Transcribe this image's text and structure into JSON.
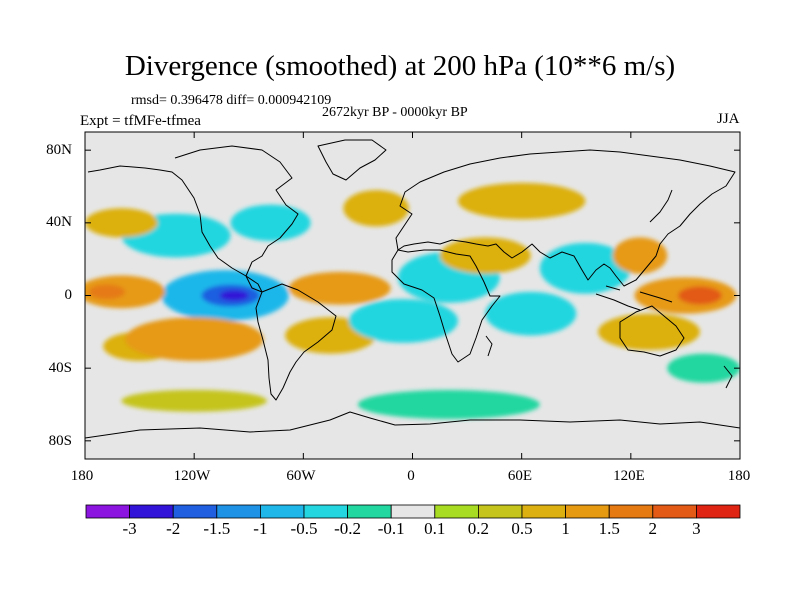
{
  "title": "Divergence (smoothed) at 200 hPa (10**6 m/s)",
  "stats": "rmsd= 0.396478 diff= 0.000942109",
  "period": "2672kyr BP - 0000kyr BP",
  "experiment": "Expt = tfMFe-tfmea",
  "season": "JJA",
  "y_axis": {
    "labels": [
      "80N",
      "40N",
      "0",
      "40S",
      "80S"
    ],
    "range": [
      -90,
      90
    ]
  },
  "x_axis": {
    "labels": [
      "180",
      "120W",
      "60W",
      "0",
      "60E",
      "120E",
      "180"
    ],
    "range": [
      -180,
      180
    ]
  },
  "colorbar": {
    "labels": [
      "-3",
      "-2",
      "-1.5",
      "-1",
      "-0.5",
      "-0.2",
      "-0.1",
      "0.1",
      "0.2",
      "0.5",
      "1",
      "1.5",
      "2",
      "3"
    ],
    "colors": [
      "#8d15e0",
      "#3214d8",
      "#1f5fe0",
      "#1e93e6",
      "#1fb7ea",
      "#24d6e0",
      "#22d7a0",
      "#e6e6e6",
      "#a8dc22",
      "#c5c41c",
      "#dcb010",
      "#e69a12",
      "#e57a12",
      "#e25a16",
      "#e02414"
    ]
  },
  "field_patches": [
    {
      "lon": -103,
      "lat": 0,
      "rlon": 35,
      "rlat": 14,
      "value": -1.0
    },
    {
      "lon": -100,
      "lat": 0,
      "rlon": 16,
      "rlat": 6,
      "value": -2.0
    },
    {
      "lon": -98,
      "lat": 0,
      "rlon": 8,
      "rlat": 3,
      "value": -3.0
    },
    {
      "lon": -160,
      "lat": 2,
      "rlon": 24,
      "rlat": 9,
      "value": 1.0
    },
    {
      "lon": -168,
      "lat": 2,
      "rlon": 10,
      "rlat": 4,
      "value": 1.5
    },
    {
      "lon": -120,
      "lat": -24,
      "rlon": 38,
      "rlat": 12,
      "value": 1.0
    },
    {
      "lon": -150,
      "lat": -28,
      "rlon": 20,
      "rlat": 8,
      "value": 0.5
    },
    {
      "lon": -130,
      "lat": 33,
      "rlon": 30,
      "rlat": 12,
      "value": -0.5
    },
    {
      "lon": -160,
      "lat": 40,
      "rlon": 20,
      "rlat": 8,
      "value": 0.5
    },
    {
      "lon": -78,
      "lat": 40,
      "rlon": 22,
      "rlat": 10,
      "value": -0.5
    },
    {
      "lon": -40,
      "lat": 4,
      "rlon": 28,
      "rlat": 9,
      "value": 1.0
    },
    {
      "lon": -45,
      "lat": -22,
      "rlon": 25,
      "rlat": 10,
      "value": 0.5
    },
    {
      "lon": -5,
      "lat": -14,
      "rlon": 30,
      "rlat": 12,
      "value": -0.5
    },
    {
      "lon": 20,
      "lat": 10,
      "rlon": 28,
      "rlat": 14,
      "value": -0.5
    },
    {
      "lon": 40,
      "lat": 22,
      "rlon": 25,
      "rlat": 10,
      "value": 0.5
    },
    {
      "lon": 65,
      "lat": -10,
      "rlon": 25,
      "rlat": 12,
      "value": -0.5
    },
    {
      "lon": 95,
      "lat": 15,
      "rlon": 25,
      "rlat": 14,
      "value": -0.5
    },
    {
      "lon": 125,
      "lat": 22,
      "rlon": 15,
      "rlat": 10,
      "value": 1.0
    },
    {
      "lon": 150,
      "lat": 0,
      "rlon": 28,
      "rlat": 10,
      "value": 1.0
    },
    {
      "lon": 158,
      "lat": 0,
      "rlon": 12,
      "rlat": 5,
      "value": 2.0
    },
    {
      "lon": 130,
      "lat": -20,
      "rlon": 28,
      "rlat": 10,
      "value": 0.5
    },
    {
      "lon": 60,
      "lat": 52,
      "rlon": 35,
      "rlat": 10,
      "value": 0.5
    },
    {
      "lon": -20,
      "lat": 48,
      "rlon": 18,
      "rlat": 10,
      "value": 0.5
    },
    {
      "lon": 20,
      "lat": -60,
      "rlon": 50,
      "rlat": 8,
      "value": -0.2
    },
    {
      "lon": -120,
      "lat": -58,
      "rlon": 40,
      "rlat": 6,
      "value": 0.2
    },
    {
      "lon": 160,
      "lat": -40,
      "rlon": 20,
      "rlat": 8,
      "value": -0.2
    }
  ]
}
